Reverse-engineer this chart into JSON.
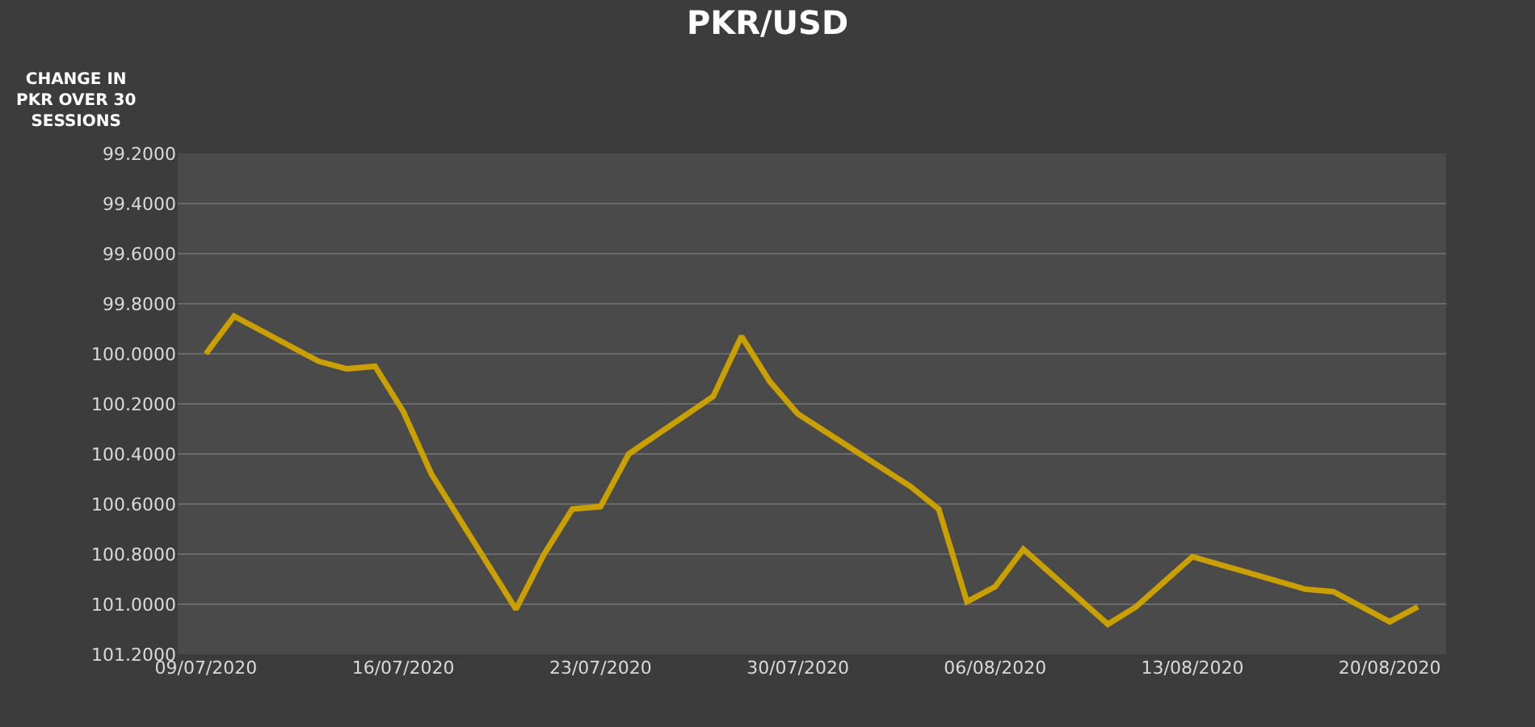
{
  "chart_data": {
    "type": "line",
    "title": "PKR/USD",
    "ylabel": "CHANGE IN\nPKR OVER 30\nSESSIONS",
    "x": [
      "2020-07-09",
      "2020-07-10",
      "2020-07-13",
      "2020-07-14",
      "2020-07-15",
      "2020-07-16",
      "2020-07-17",
      "2020-07-20",
      "2020-07-21",
      "2020-07-22",
      "2020-07-23",
      "2020-07-24",
      "2020-07-27",
      "2020-07-28",
      "2020-07-29",
      "2020-07-30",
      "2020-08-03",
      "2020-08-04",
      "2020-08-05",
      "2020-08-06",
      "2020-08-07",
      "2020-08-10",
      "2020-08-11",
      "2020-08-13",
      "2020-08-17",
      "2020-08-18",
      "2020-08-20",
      "2020-08-21"
    ],
    "series": [
      {
        "color": "#c9a000",
        "values": [
          100.0,
          99.85,
          100.03,
          100.06,
          100.05,
          100.23,
          100.48,
          101.02,
          100.8,
          100.62,
          100.61,
          100.4,
          100.17,
          99.93,
          100.11,
          100.24,
          100.53,
          100.62,
          100.99,
          100.93,
          100.78,
          101.08,
          101.01,
          100.81,
          100.94,
          100.95,
          101.07,
          101.01
        ]
      }
    ],
    "ylim": [
      101.2,
      99.2
    ],
    "yticks": [
      {
        "value": 99.2,
        "label": "99.2000"
      },
      {
        "value": 99.4,
        "label": "99.4000"
      },
      {
        "value": 99.6,
        "label": "99.6000"
      },
      {
        "value": 99.8,
        "label": "99.8000"
      },
      {
        "value": 100.0,
        "label": "100.0000"
      },
      {
        "value": 100.2,
        "label": "100.2000"
      },
      {
        "value": 100.4,
        "label": "100.4000"
      },
      {
        "value": 100.6,
        "label": "100.6000"
      },
      {
        "value": 100.8,
        "label": "100.8000"
      },
      {
        "value": 101.0,
        "label": "101.0000"
      },
      {
        "value": 101.2,
        "label": "101.2000"
      }
    ],
    "xlim": [
      "2020-07-08",
      "2020-08-22"
    ],
    "xticks": [
      {
        "value": "2020-07-09",
        "label": "09/07/2020"
      },
      {
        "value": "2020-07-16",
        "label": "16/07/2020"
      },
      {
        "value": "2020-07-23",
        "label": "23/07/2020"
      },
      {
        "value": "2020-07-30",
        "label": "30/07/2020"
      },
      {
        "value": "2020-08-06",
        "label": "06/08/2020"
      },
      {
        "value": "2020-08-13",
        "label": "13/08/2020"
      },
      {
        "value": "2020-08-20",
        "label": "20/08/2020"
      }
    ],
    "grid": "y",
    "marker": "none",
    "line_style": "solid"
  }
}
